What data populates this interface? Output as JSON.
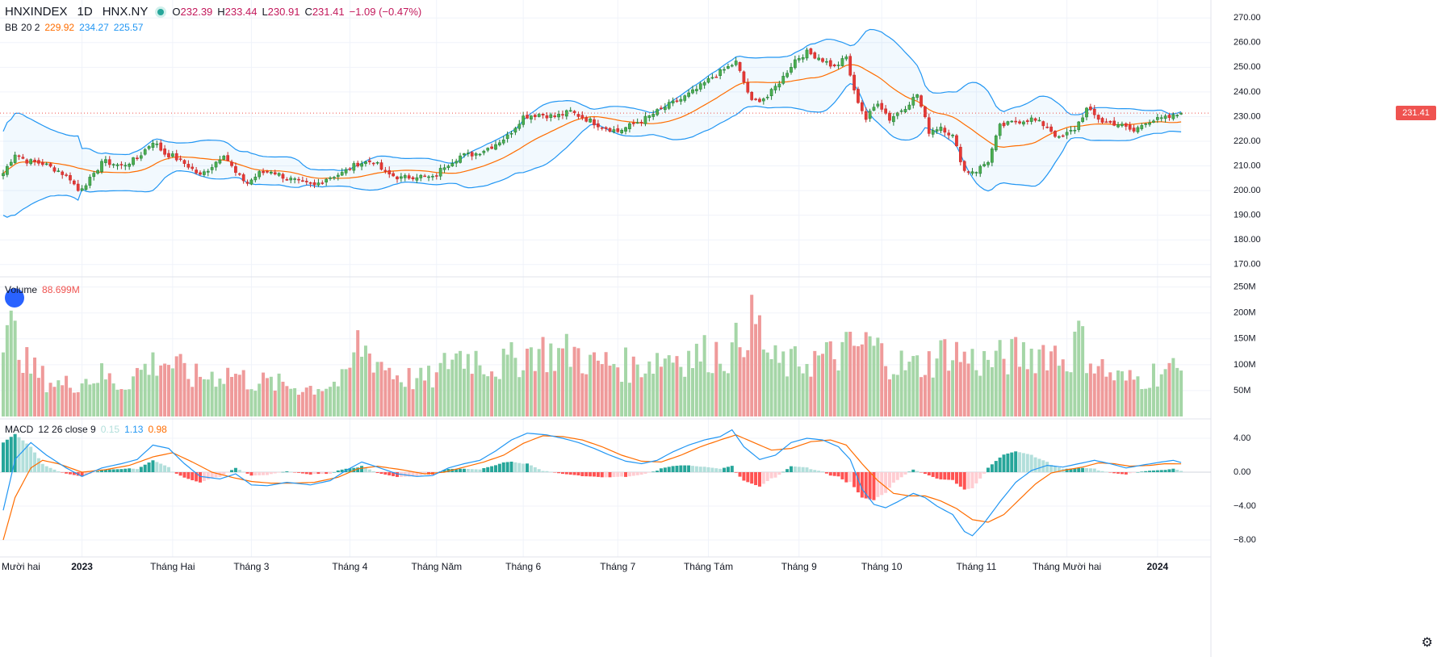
{
  "header": {
    "symbol": "HNXINDEX",
    "interval": "1D",
    "exchange": "HNX.NY",
    "open_label": "O",
    "open": "232.39",
    "high_label": "H",
    "high": "233.44",
    "low_label": "L",
    "low": "230.91",
    "close_label": "C",
    "close": "231.41",
    "change": "−1.09 (−0.47%)"
  },
  "bb_legend": {
    "name": "BB",
    "params": "20 2",
    "basis": "229.92",
    "upper": "234.27",
    "lower": "225.57"
  },
  "volume_legend": {
    "name": "Volume",
    "value": "88.699M"
  },
  "macd_legend": {
    "name": "MACD",
    "params": "12 26 close 9",
    "hist": "0.15",
    "macd": "1.13",
    "signal": "0.98"
  },
  "last_price_tag": "231.41",
  "colors": {
    "up": "#26a69a",
    "down": "#ef5350",
    "bb_basis": "#ff6d00",
    "bb_band": "#2196f3",
    "macd_line": "#2196f3",
    "signal_line": "#ff6d00"
  },
  "chart_data": {
    "type": "candlestick",
    "price_axis": {
      "ticks": [
        270,
        260,
        250,
        240,
        230,
        220,
        210,
        200,
        190,
        180,
        170
      ],
      "range": [
        166,
        274
      ]
    },
    "volume_axis": {
      "ticks": [
        "250M",
        "200M",
        "150M",
        "100M",
        "50M"
      ],
      "tick_values": [
        250,
        200,
        150,
        100,
        50
      ],
      "range": [
        0,
        265
      ]
    },
    "macd_axis": {
      "ticks": [
        "4.00",
        "0.00",
        "−4.00",
        "−8.00"
      ],
      "tick_values": [
        4,
        0,
        -4,
        -8
      ],
      "range": [
        -10,
        6
      ]
    },
    "time_labels": [
      {
        "label": "Mười hai",
        "i": -1
      },
      {
        "label": "2023",
        "i": 20,
        "bold": true
      },
      {
        "label": "Tháng Hai",
        "i": 43
      },
      {
        "label": "Tháng 3",
        "i": 63
      },
      {
        "label": "Tháng 4",
        "i": 88
      },
      {
        "label": "Tháng Năm",
        "i": 110
      },
      {
        "label": "Tháng 6",
        "i": 132
      },
      {
        "label": "Tháng 7",
        "i": 156
      },
      {
        "label": "Tháng Tám",
        "i": 179
      },
      {
        "label": "Tháng 9",
        "i": 202
      },
      {
        "label": "Tháng 10",
        "i": 223
      },
      {
        "label": "Tháng 11",
        "i": 247
      },
      {
        "label": "Tháng Mười hai",
        "i": 270
      },
      {
        "label": "2024",
        "i": 293,
        "bold": true
      }
    ],
    "close_anchors": [
      [
        0,
        207
      ],
      [
        3,
        215
      ],
      [
        6,
        212
      ],
      [
        10,
        211
      ],
      [
        14,
        208
      ],
      [
        17,
        205
      ],
      [
        19,
        200
      ],
      [
        23,
        206
      ],
      [
        25,
        212
      ],
      [
        30,
        210
      ],
      [
        34,
        213
      ],
      [
        38,
        220
      ],
      [
        41,
        215
      ],
      [
        43,
        214
      ],
      [
        47,
        210
      ],
      [
        50,
        206
      ],
      [
        53,
        210
      ],
      [
        56,
        215
      ],
      [
        59,
        207
      ],
      [
        62,
        203
      ],
      [
        65,
        207
      ],
      [
        68,
        208
      ],
      [
        72,
        205
      ],
      [
        76,
        203
      ],
      [
        79,
        202
      ],
      [
        82,
        205
      ],
      [
        86,
        207
      ],
      [
        90,
        211
      ],
      [
        94,
        212
      ],
      [
        97,
        207
      ],
      [
        101,
        205
      ],
      [
        105,
        206
      ],
      [
        109,
        205
      ],
      [
        112,
        210
      ],
      [
        116,
        214
      ],
      [
        120,
        215
      ],
      [
        124,
        218
      ],
      [
        128,
        222
      ],
      [
        132,
        230
      ],
      [
        136,
        231
      ],
      [
        140,
        230
      ],
      [
        144,
        232
      ],
      [
        148,
        229
      ],
      [
        152,
        226
      ],
      [
        156,
        224
      ],
      [
        160,
        227
      ],
      [
        164,
        230
      ],
      [
        168,
        234
      ],
      [
        172,
        237
      ],
      [
        176,
        241
      ],
      [
        180,
        246
      ],
      [
        183,
        249
      ],
      [
        186,
        252
      ],
      [
        190,
        236
      ],
      [
        194,
        238
      ],
      [
        198,
        246
      ],
      [
        201,
        253
      ],
      [
        204,
        256
      ],
      [
        207,
        254
      ],
      [
        211,
        250
      ],
      [
        214,
        254
      ],
      [
        216,
        240
      ],
      [
        219,
        229
      ],
      [
        222,
        236
      ],
      [
        225,
        229
      ],
      [
        229,
        234
      ],
      [
        232,
        239
      ],
      [
        235,
        224
      ],
      [
        238,
        226
      ],
      [
        241,
        222
      ],
      [
        244,
        208
      ],
      [
        247,
        208
      ],
      [
        250,
        212
      ],
      [
        253,
        226
      ],
      [
        257,
        228
      ],
      [
        261,
        229
      ],
      [
        265,
        226
      ],
      [
        268,
        221
      ],
      [
        272,
        225
      ],
      [
        275,
        233
      ],
      [
        279,
        228
      ],
      [
        283,
        227
      ],
      [
        287,
        224
      ],
      [
        290,
        228
      ],
      [
        294,
        229
      ],
      [
        297,
        230
      ],
      [
        299,
        231.41
      ]
    ],
    "bars_count": 300,
    "volume_profile_millions": [
      [
        0,
        130
      ],
      [
        3,
        180
      ],
      [
        6,
        100
      ],
      [
        10,
        75
      ],
      [
        15,
        60
      ],
      [
        20,
        70
      ],
      [
        25,
        80
      ],
      [
        30,
        60
      ],
      [
        35,
        90
      ],
      [
        40,
        110
      ],
      [
        43,
        100
      ],
      [
        48,
        75
      ],
      [
        53,
        80
      ],
      [
        58,
        85
      ],
      [
        62,
        70
      ],
      [
        67,
        65
      ],
      [
        72,
        60
      ],
      [
        77,
        55
      ],
      [
        82,
        60
      ],
      [
        87,
        70
      ],
      [
        90,
        140
      ],
      [
        95,
        110
      ],
      [
        100,
        80
      ],
      [
        105,
        70
      ],
      [
        110,
        75
      ],
      [
        114,
        120
      ],
      [
        120,
        115
      ],
      [
        125,
        95
      ],
      [
        130,
        110
      ],
      [
        135,
        130
      ],
      [
        140,
        120
      ],
      [
        145,
        125
      ],
      [
        150,
        100
      ],
      [
        155,
        105
      ],
      [
        160,
        95
      ],
      [
        165,
        110
      ],
      [
        170,
        120
      ],
      [
        175,
        115
      ],
      [
        180,
        125
      ],
      [
        185,
        120
      ],
      [
        190,
        200
      ],
      [
        195,
        105
      ],
      [
        200,
        100
      ],
      [
        205,
        110
      ],
      [
        210,
        115
      ],
      [
        215,
        130
      ],
      [
        220,
        140
      ],
      [
        225,
        110
      ],
      [
        230,
        95
      ],
      [
        235,
        105
      ],
      [
        240,
        130
      ],
      [
        245,
        110
      ],
      [
        250,
        105
      ],
      [
        255,
        115
      ],
      [
        260,
        120
      ],
      [
        265,
        130
      ],
      [
        270,
        110
      ],
      [
        273,
        145
      ],
      [
        277,
        105
      ],
      [
        281,
        80
      ],
      [
        285,
        70
      ],
      [
        290,
        75
      ],
      [
        294,
        90
      ],
      [
        299,
        89
      ]
    ],
    "macd_anchors": [
      [
        0,
        -4.5
      ],
      [
        3,
        1.5
      ],
      [
        7,
        3.5
      ],
      [
        11,
        2.0
      ],
      [
        16,
        0.5
      ],
      [
        20,
        -0.5
      ],
      [
        25,
        0.5
      ],
      [
        30,
        1.0
      ],
      [
        34,
        1.5
      ],
      [
        38,
        3.2
      ],
      [
        42,
        2.8
      ],
      [
        46,
        1.0
      ],
      [
        50,
        -0.5
      ],
      [
        55,
        -0.8
      ],
      [
        59,
        -0.2
      ],
      [
        63,
        -1.5
      ],
      [
        67,
        -1.6
      ],
      [
        72,
        -1.2
      ],
      [
        78,
        -1.5
      ],
      [
        83,
        -1.0
      ],
      [
        87,
        0.2
      ],
      [
        91,
        1.2
      ],
      [
        95,
        0.6
      ],
      [
        100,
        -0.2
      ],
      [
        105,
        -0.5
      ],
      [
        109,
        -0.4
      ],
      [
        113,
        0.5
      ],
      [
        117,
        1.0
      ],
      [
        121,
        1.4
      ],
      [
        125,
        2.5
      ],
      [
        129,
        3.8
      ],
      [
        133,
        4.6
      ],
      [
        138,
        4.4
      ],
      [
        142,
        4.0
      ],
      [
        146,
        3.5
      ],
      [
        150,
        2.8
      ],
      [
        154,
        2.0
      ],
      [
        158,
        1.3
      ],
      [
        162,
        1.0
      ],
      [
        166,
        1.4
      ],
      [
        170,
        2.4
      ],
      [
        174,
        3.2
      ],
      [
        178,
        3.8
      ],
      [
        182,
        4.2
      ],
      [
        185,
        5.0
      ],
      [
        188,
        3.0
      ],
      [
        192,
        1.5
      ],
      [
        196,
        2.0
      ],
      [
        200,
        3.5
      ],
      [
        204,
        4.0
      ],
      [
        208,
        3.8
      ],
      [
        212,
        3.0
      ],
      [
        215,
        1.5
      ],
      [
        218,
        -2.0
      ],
      [
        221,
        -3.8
      ],
      [
        224,
        -4.2
      ],
      [
        227,
        -3.5
      ],
      [
        231,
        -2.5
      ],
      [
        234,
        -3.0
      ],
      [
        237,
        -4.0
      ],
      [
        241,
        -5.0
      ],
      [
        244,
        -7.0
      ],
      [
        246,
        -7.5
      ],
      [
        249,
        -6.0
      ],
      [
        253,
        -3.5
      ],
      [
        257,
        -1.2
      ],
      [
        261,
        0.2
      ],
      [
        265,
        0.8
      ],
      [
        269,
        0.6
      ],
      [
        273,
        1.0
      ],
      [
        277,
        1.4
      ],
      [
        281,
        1.0
      ],
      [
        285,
        0.5
      ],
      [
        290,
        0.9
      ],
      [
        294,
        1.2
      ],
      [
        297,
        1.4
      ],
      [
        299,
        1.13
      ]
    ],
    "signal_anchors": [
      [
        0,
        -8.0
      ],
      [
        3,
        -3.0
      ],
      [
        7,
        0.5
      ],
      [
        10,
        1.4
      ],
      [
        14,
        1.0
      ],
      [
        20,
        0.0
      ],
      [
        26,
        0.3
      ],
      [
        32,
        0.8
      ],
      [
        38,
        1.8
      ],
      [
        43,
        2.3
      ],
      [
        48,
        1.2
      ],
      [
        53,
        0.0
      ],
      [
        58,
        -0.6
      ],
      [
        63,
        -1.1
      ],
      [
        68,
        -1.3
      ],
      [
        73,
        -1.3
      ],
      [
        79,
        -1.2
      ],
      [
        85,
        -0.6
      ],
      [
        90,
        0.4
      ],
      [
        95,
        0.7
      ],
      [
        101,
        0.3
      ],
      [
        107,
        -0.2
      ],
      [
        112,
        0.0
      ],
      [
        117,
        0.6
      ],
      [
        122,
        1.2
      ],
      [
        127,
        2.0
      ],
      [
        132,
        3.4
      ],
      [
        137,
        4.3
      ],
      [
        142,
        4.2
      ],
      [
        147,
        3.8
      ],
      [
        152,
        3.0
      ],
      [
        157,
        2.0
      ],
      [
        162,
        1.3
      ],
      [
        167,
        1.2
      ],
      [
        172,
        2.0
      ],
      [
        177,
        3.0
      ],
      [
        182,
        3.8
      ],
      [
        186,
        4.4
      ],
      [
        190,
        3.6
      ],
      [
        195,
        2.6
      ],
      [
        200,
        2.8
      ],
      [
        205,
        3.6
      ],
      [
        210,
        3.8
      ],
      [
        214,
        3.2
      ],
      [
        218,
        1.0
      ],
      [
        222,
        -1.0
      ],
      [
        226,
        -2.5
      ],
      [
        230,
        -2.8
      ],
      [
        234,
        -2.8
      ],
      [
        238,
        -3.4
      ],
      [
        242,
        -4.3
      ],
      [
        246,
        -5.6
      ],
      [
        250,
        -5.9
      ],
      [
        254,
        -5.0
      ],
      [
        258,
        -3.2
      ],
      [
        262,
        -1.4
      ],
      [
        266,
        -0.1
      ],
      [
        270,
        0.3
      ],
      [
        274,
        0.6
      ],
      [
        278,
        1.1
      ],
      [
        282,
        1.0
      ],
      [
        286,
        0.7
      ],
      [
        291,
        0.8
      ],
      [
        295,
        1.0
      ],
      [
        299,
        0.98
      ]
    ]
  }
}
